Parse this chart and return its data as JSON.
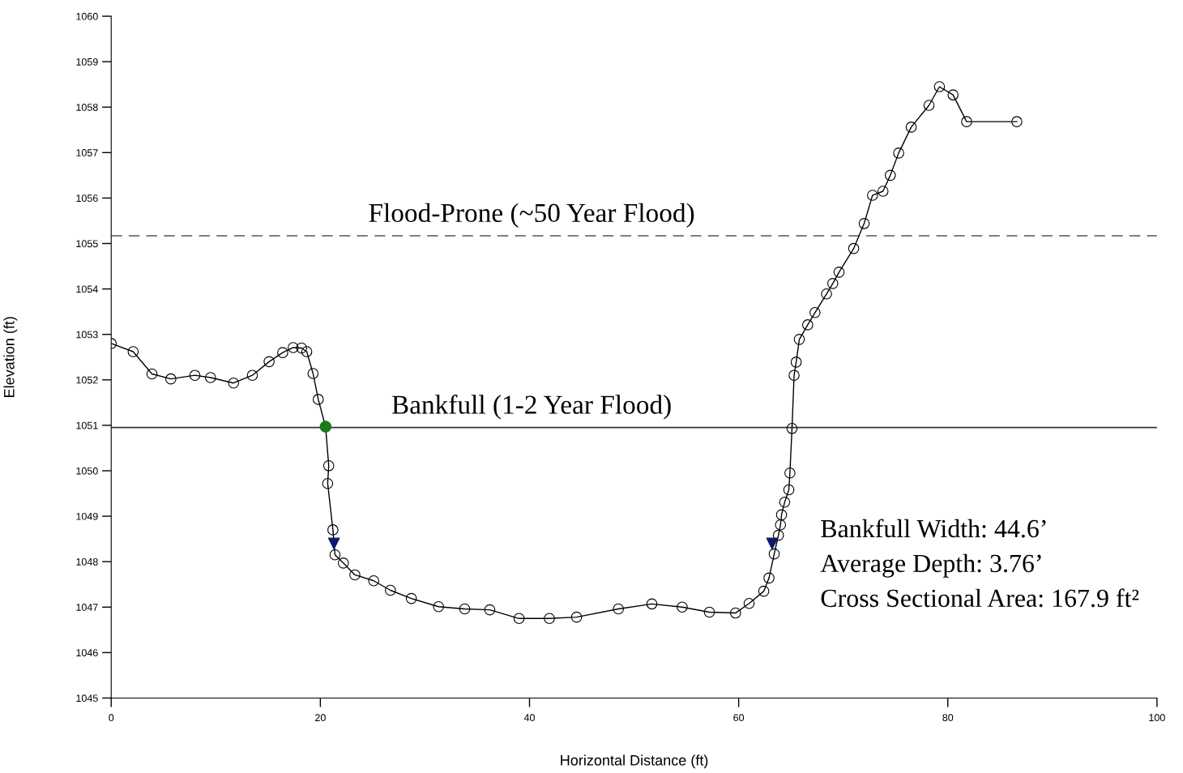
{
  "chart_data": {
    "type": "line",
    "xlabel": "Horizontal Distance (ft)",
    "ylabel": "Elevation (ft)",
    "xlim": [
      0,
      100
    ],
    "xticks": [
      0,
      20,
      40,
      60,
      80,
      100
    ],
    "ylim": [
      1045,
      1060
    ],
    "yticks": [
      1045,
      1046,
      1047,
      1048,
      1049,
      1050,
      1051,
      1052,
      1053,
      1054,
      1055,
      1056,
      1057,
      1058,
      1059,
      1060
    ],
    "grid": false,
    "legend": false,
    "marker": "circle",
    "line_style": "solid",
    "series": [
      {
        "color": "#000000",
        "x": [
          0,
          2.1,
          3.9,
          5.7,
          8.0,
          9.5,
          11.7,
          13.5,
          15.1,
          16.4,
          17.4,
          18.2,
          18.7,
          19.3,
          19.8,
          20.5,
          20.8,
          20.7,
          21.2,
          21.4,
          22.2,
          23.3,
          25.1,
          26.7,
          28.7,
          31.3,
          33.8,
          36.2,
          39.0,
          41.9,
          44.5,
          48.5,
          51.7,
          54.6,
          57.2,
          59.7,
          61.0,
          62.4,
          62.9,
          63.4,
          63.8,
          64.0,
          64.1,
          64.4,
          64.8,
          64.9,
          65.1,
          65.3,
          65.5,
          65.8,
          66.6,
          67.3,
          68.4,
          69.0,
          69.6,
          71.0,
          72.0,
          72.8,
          73.8,
          74.5,
          75.3,
          76.5,
          78.2,
          79.2,
          80.5,
          81.8,
          86.6
        ],
        "values": [
          1052.8,
          1052.62,
          1052.13,
          1052.02,
          1052.1,
          1052.05,
          1051.93,
          1052.1,
          1052.4,
          1052.6,
          1052.71,
          1052.7,
          1052.62,
          1052.14,
          1051.57,
          1050.97,
          1050.11,
          1049.72,
          1048.7,
          1048.15,
          1047.97,
          1047.71,
          1047.58,
          1047.37,
          1047.19,
          1047.01,
          1046.96,
          1046.94,
          1046.75,
          1046.75,
          1046.78,
          1046.96,
          1047.07,
          1047.0,
          1046.89,
          1046.87,
          1047.08,
          1047.35,
          1047.64,
          1048.17,
          1048.58,
          1048.81,
          1049.03,
          1049.31,
          1049.58,
          1049.95,
          1050.93,
          1052.1,
          1052.39,
          1052.89,
          1053.21,
          1053.48,
          1053.89,
          1054.12,
          1054.37,
          1054.89,
          1055.44,
          1056.06,
          1056.15,
          1056.5,
          1056.99,
          1057.56,
          1058.04,
          1058.45,
          1058.27,
          1057.68,
          1057.68
        ]
      },
      {
        "type": "scatter",
        "color": "#1a7a1a",
        "marker": "circle",
        "x": [
          20.5
        ],
        "values": [
          1050.97
        ]
      },
      {
        "type": "scatter",
        "color": "#0a1a6e",
        "marker": "triangle",
        "x": [
          21.3,
          63.2
        ],
        "values": [
          1048.4,
          1048.4
        ]
      }
    ],
    "ref_lines": [
      {
        "axis": "y",
        "value": 1055.17,
        "label": "Flood-Prone (~50 Year Flood)",
        "color": "#555555",
        "line_style": "dashed"
      },
      {
        "axis": "y",
        "value": 1050.95,
        "label": "Bankfull (1-2 Year Flood)",
        "color": "#333333",
        "line_style": "solid"
      }
    ],
    "annotations": [
      "Bankfull Width: 44.6’",
      "Average Depth: 3.76’",
      "Cross Sectional Area: 167.9 ft²"
    ]
  }
}
